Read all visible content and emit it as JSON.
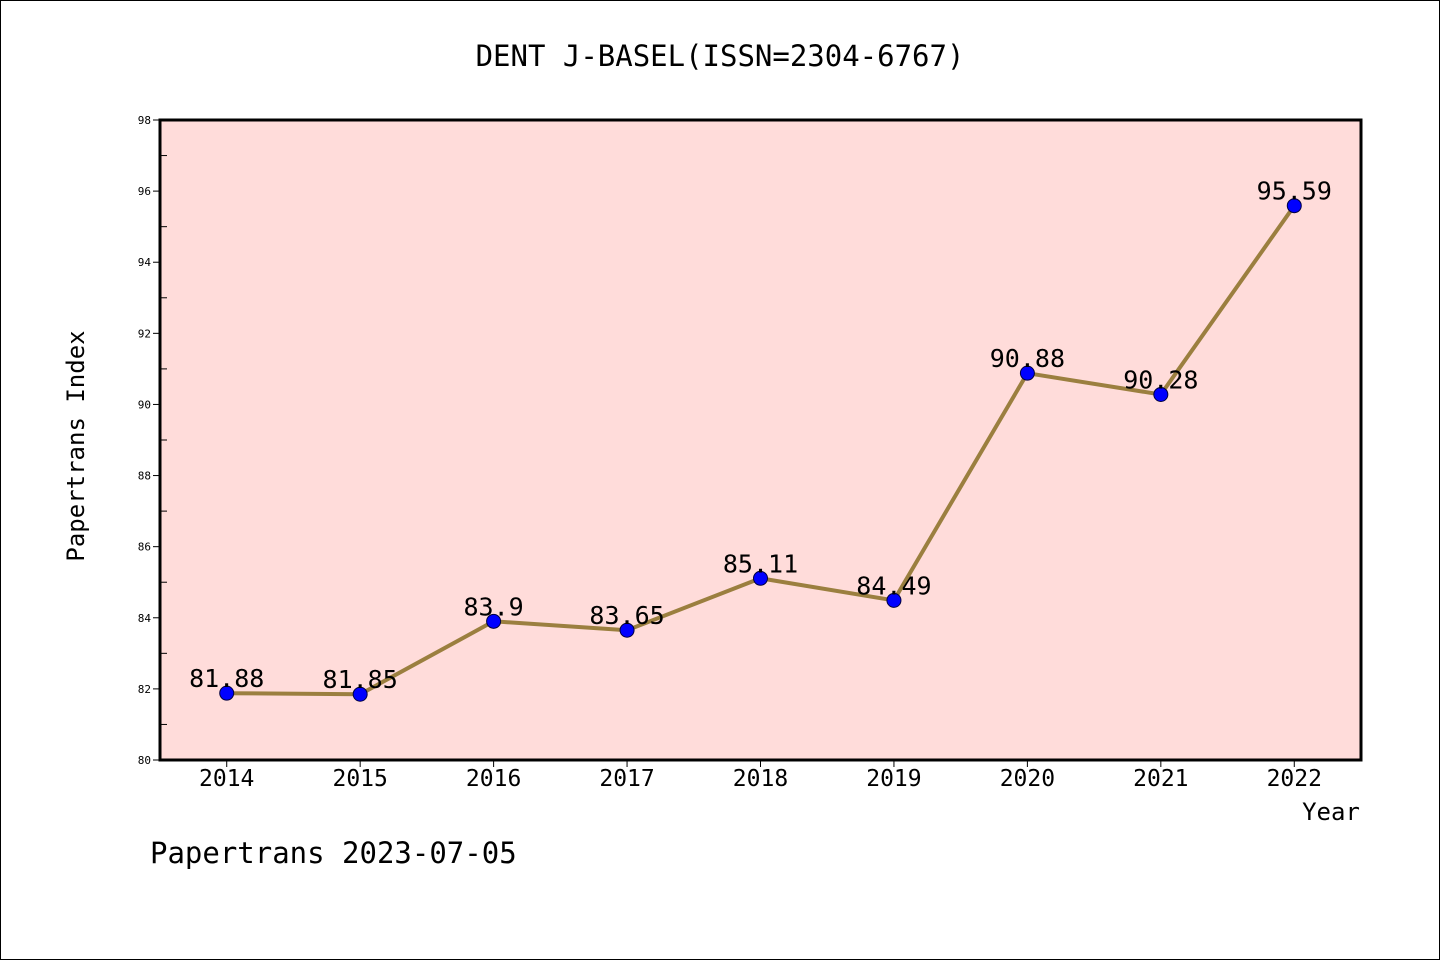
{
  "footer": "Papertrans 2023-07-05",
  "colors": {
    "page_background": "#FFFFFF",
    "plot_background": "#FFDCDA",
    "line": "#9B7F3F",
    "marker": "#0000FF",
    "marker_edge": "#000040",
    "axis": "#000000"
  },
  "chart_data": {
    "type": "line",
    "title": "DENT J-BASEL(ISSN=2304-6767)",
    "xlabel": "Year",
    "ylabel": "Papertrans Index",
    "categories": [
      "2014",
      "2015",
      "2016",
      "2017",
      "2018",
      "2019",
      "2020",
      "2021",
      "2022"
    ],
    "values": [
      81.88,
      81.85,
      83.9,
      83.65,
      85.11,
      84.49,
      90.88,
      90.28,
      95.59
    ],
    "ylim": [
      80,
      98
    ],
    "y_ticks": [
      80,
      82,
      84,
      86,
      88,
      90,
      92,
      94,
      96,
      98
    ],
    "data_labels_shown": true,
    "grid": false,
    "legend": false
  }
}
